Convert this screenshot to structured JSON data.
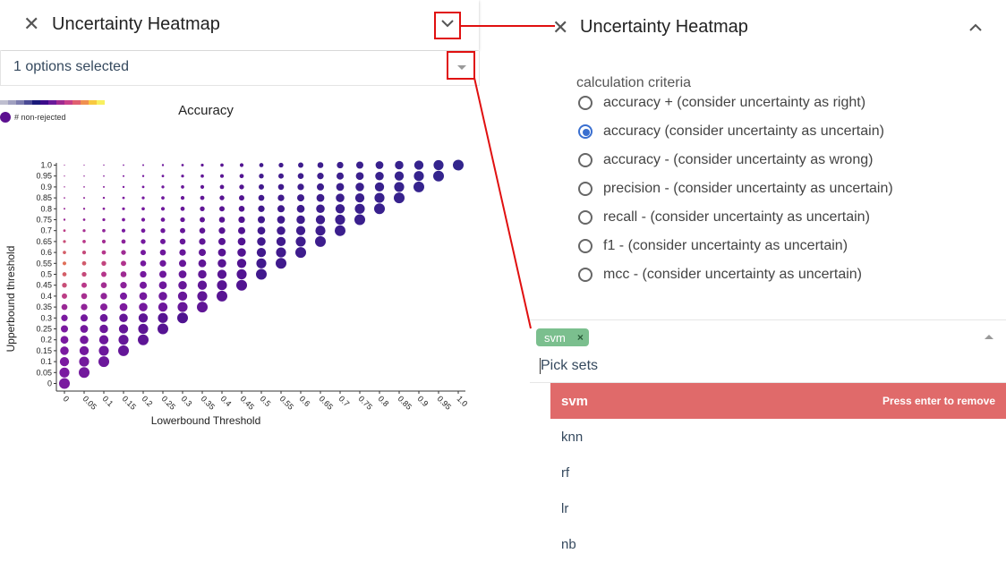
{
  "left_panel": {
    "title": "Uncertainty Heatmap",
    "select_text": "1 options selected",
    "legend_label": "# non-rejected",
    "legend_colors": [
      "#bfbfd0",
      "#a0a0c0",
      "#7c7cae",
      "#4b4b95",
      "#1a1a7a",
      "#3c0b8a",
      "#6a1a9a",
      "#a02a90",
      "#c8408a",
      "#e06070",
      "#f09050",
      "#f8c840",
      "#f8f060"
    ]
  },
  "right_panel": {
    "title": "Uncertainty Heatmap",
    "criteria_label": "calculation criteria",
    "options": [
      {
        "label": "accuracy + (consider uncertainty as right)",
        "checked": false
      },
      {
        "label": "accuracy (consider uncertainty as uncertain)",
        "checked": true
      },
      {
        "label": "accuracy - (consider uncertainty as wrong)",
        "checked": false
      },
      {
        "label": "precision - (consider uncertainty as uncertain)",
        "checked": false
      },
      {
        "label": "recall - (consider uncertainty as uncertain)",
        "checked": false
      },
      {
        "label": "f1 - (consider uncertainty as uncertain)",
        "checked": false
      },
      {
        "label": "mcc - (consider uncertainty as uncertain)",
        "checked": false
      }
    ],
    "multiselect": {
      "tag": "svm",
      "tag_remove": "×",
      "placeholder": "Pick sets",
      "highlight_hint": "Press enter to remove",
      "items": [
        "svm",
        "knn",
        "rf",
        "lr",
        "nb"
      ]
    }
  },
  "chart_data": {
    "type": "scatter",
    "title": "Accuracy",
    "xlabel": "Lowerbound Threshold",
    "ylabel": "Upperbound threshold",
    "x_ticks": [
      "0",
      "0.05",
      "0.1",
      "0.15",
      "0.2",
      "0.25",
      "0.3",
      "0.35",
      "0.4",
      "0.45",
      "0.5",
      "0.55",
      "0.6",
      "0.65",
      "0.7",
      "0.75",
      "0.8",
      "0.85",
      "0.9",
      "0.95",
      "1.0"
    ],
    "y_ticks": [
      "0",
      "0.05",
      "0.1",
      "0.15",
      "0.2",
      "0.25",
      "0.3",
      "0.35",
      "0.4",
      "0.45",
      "0.5",
      "0.55",
      "0.6",
      "0.65",
      "0.7",
      "0.75",
      "0.8",
      "0.85",
      "0.9",
      "0.95",
      "1.0"
    ],
    "note": "points exist where upperbound >= lowerbound; size grows and color shifts purple->orange->purple/blue",
    "colors": {
      "low_x_high_y": "#f0b060",
      "mid": "#c04080",
      "low": "#6a10a0",
      "high": "#2a2a8a"
    }
  }
}
